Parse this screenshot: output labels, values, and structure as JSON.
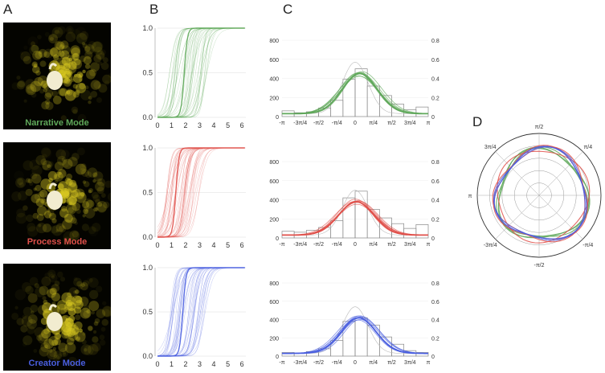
{
  "panel_labels": {
    "a": "A",
    "b": "B",
    "c": "C",
    "d": "D"
  },
  "modes": [
    {
      "label": "Narrative Mode",
      "color": "#5fa85a"
    },
    {
      "label": "Process Mode",
      "color": "#e0504a"
    },
    {
      "label": "Creator Mode",
      "color": "#4a5fe0"
    }
  ],
  "chart_data": [
    {
      "type": "line",
      "panel": "B",
      "description_of_rows": "three cumulative-curve plots (one per mode), each with many thin curves and a bold mean curve",
      "x_ticks": [
        "0",
        "1",
        "2",
        "3",
        "4",
        "5",
        "6"
      ],
      "y_ticks": [
        "0.0",
        "0.5",
        "1.0"
      ],
      "xlim": [
        0,
        6.28
      ],
      "ylim": [
        0,
        1
      ],
      "series": [
        {
          "mode": "Narrative Mode",
          "mean_midpoint": 1.9,
          "curve_midpoints_range": [
            0.8,
            3.6
          ]
        },
        {
          "mode": "Process Mode",
          "mean_midpoint": 1.3,
          "curve_midpoints_range": [
            0.6,
            3.0
          ]
        },
        {
          "mode": "Creator Mode",
          "mean_midpoint": 1.8,
          "curve_midpoints_range": [
            0.9,
            3.4
          ]
        }
      ]
    },
    {
      "type": "bar",
      "panel": "C",
      "categories": [
        "-π",
        "-3π/4",
        "-π/2",
        "-π/4",
        "0",
        "π/4",
        "π/2",
        "3π/4",
        "π"
      ],
      "left_ticks": [
        "0",
        "200",
        "400",
        "600",
        "800"
      ],
      "right_ticks": [
        "0",
        "0.2",
        "0.4",
        "0.6",
        "0.8"
      ],
      "ylim_left": [
        0,
        800
      ],
      "ylim_right": [
        0,
        0.8
      ],
      "series": [
        {
          "mode": "Narrative Mode",
          "histogram": [
            60,
            40,
            50,
            90,
            170,
            390,
            500,
            320,
            220,
            130,
            70,
            100
          ],
          "fit_peak": 420,
          "fit_center": 0.2
        },
        {
          "mode": "Process Mode",
          "histogram": [
            70,
            60,
            80,
            110,
            180,
            420,
            490,
            300,
            210,
            150,
            100,
            140
          ],
          "fit_peak": 350,
          "fit_center": 0.05
        },
        {
          "mode": "Creator Mode",
          "histogram": [
            40,
            30,
            50,
            80,
            170,
            380,
            420,
            340,
            210,
            130,
            60,
            40
          ],
          "fit_peak": 390,
          "fit_center": 0.15
        }
      ]
    },
    {
      "type": "line",
      "panel": "D",
      "polar": true,
      "angle_labels": [
        "π/2",
        "π/4",
        "0",
        "-π/4",
        "-π/2",
        "-3π/4",
        "π",
        "3π/4"
      ],
      "rings": 5,
      "series": [
        {
          "mode": "Narrative Mode",
          "mean_radius": 0.72
        },
        {
          "mode": "Process Mode",
          "mean_radius": 0.74
        },
        {
          "mode": "Creator Mode",
          "mean_radius": 0.73
        }
      ]
    }
  ]
}
